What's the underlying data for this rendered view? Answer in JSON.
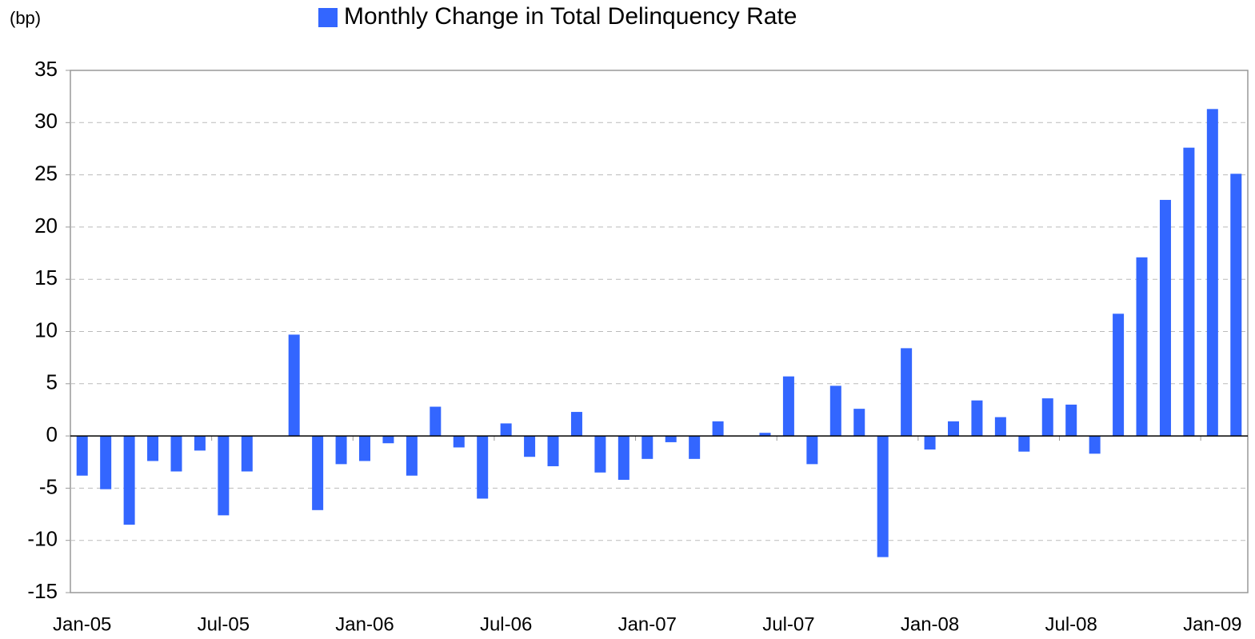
{
  "chart_data": {
    "type": "bar",
    "y_axis_label": "(bp)",
    "series": [
      {
        "name": "Monthly Change in Total Delinquency Rate",
        "color": "#3366ff",
        "values": [
          -3.8,
          -5.1,
          -8.5,
          -2.4,
          -3.4,
          -1.4,
          -7.6,
          -3.4,
          0,
          9.7,
          -7.1,
          -2.7,
          -2.4,
          -0.7,
          -3.8,
          2.8,
          -1.1,
          -6.0,
          1.2,
          -2.0,
          -2.9,
          2.3,
          -3.5,
          -4.2,
          -2.2,
          -0.6,
          -2.2,
          1.4,
          0,
          0.3,
          5.7,
          -2.7,
          4.8,
          2.6,
          -11.6,
          8.4,
          -1.3,
          1.4,
          3.4,
          1.8,
          -1.5,
          3.6,
          3.0,
          -1.7,
          11.7,
          17.1,
          22.6,
          27.6,
          31.3,
          25.1
        ]
      }
    ],
    "categories": [
      "Jan-05",
      null,
      null,
      null,
      null,
      null,
      "Jul-05",
      null,
      null,
      null,
      null,
      null,
      "Jan-06",
      null,
      null,
      null,
      null,
      null,
      "Jul-06",
      null,
      null,
      null,
      null,
      null,
      "Jan-07",
      null,
      null,
      null,
      null,
      null,
      "Jul-07",
      null,
      null,
      null,
      null,
      null,
      "Jan-08",
      null,
      null,
      null,
      null,
      null,
      "Jul-08",
      null,
      null,
      null,
      null,
      null,
      "Jan-09",
      null
    ],
    "ylim": [
      -15,
      35
    ],
    "yticks": [
      -15,
      -10,
      -5,
      0,
      5,
      10,
      15,
      20,
      25,
      30,
      35
    ],
    "grid": true
  }
}
